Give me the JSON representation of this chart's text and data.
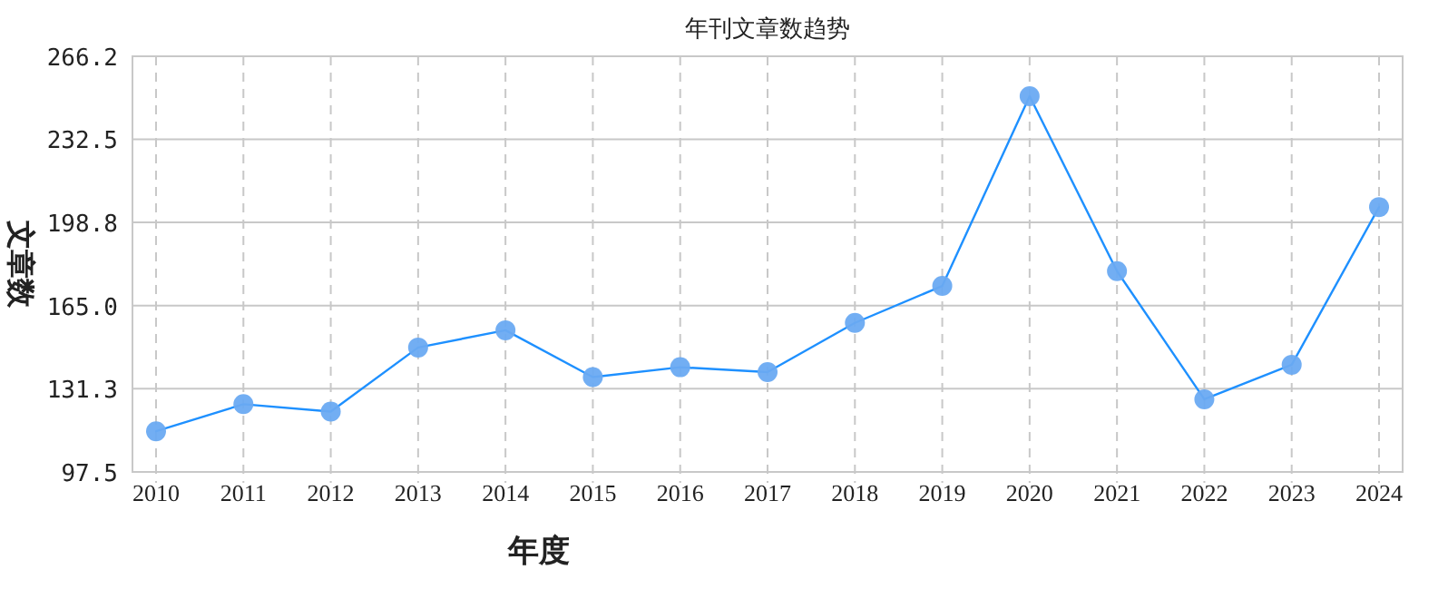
{
  "chart_data": {
    "type": "line",
    "title": "年刊文章数趋势",
    "xlabel": "年度",
    "ylabel": "文章数",
    "categories": [
      "2010",
      "2011",
      "2012",
      "2013",
      "2014",
      "2015",
      "2016",
      "2017",
      "2018",
      "2019",
      "2020",
      "2021",
      "2022",
      "2023",
      "2024"
    ],
    "series": [
      {
        "color": "#1e90ff",
        "values": [
          114,
          125,
          122,
          148,
          155,
          136,
          140,
          138,
          158,
          173,
          250,
          179,
          127,
          141,
          205
        ]
      }
    ],
    "ylim": [
      97.5,
      266.2
    ],
    "yticks": [
      97.5,
      131.3,
      {
        "value": 165,
        "label": "165.0"
      },
      198.8,
      232.5,
      266.2
    ],
    "grid": true,
    "marker": "circle",
    "line_style": "solid"
  }
}
